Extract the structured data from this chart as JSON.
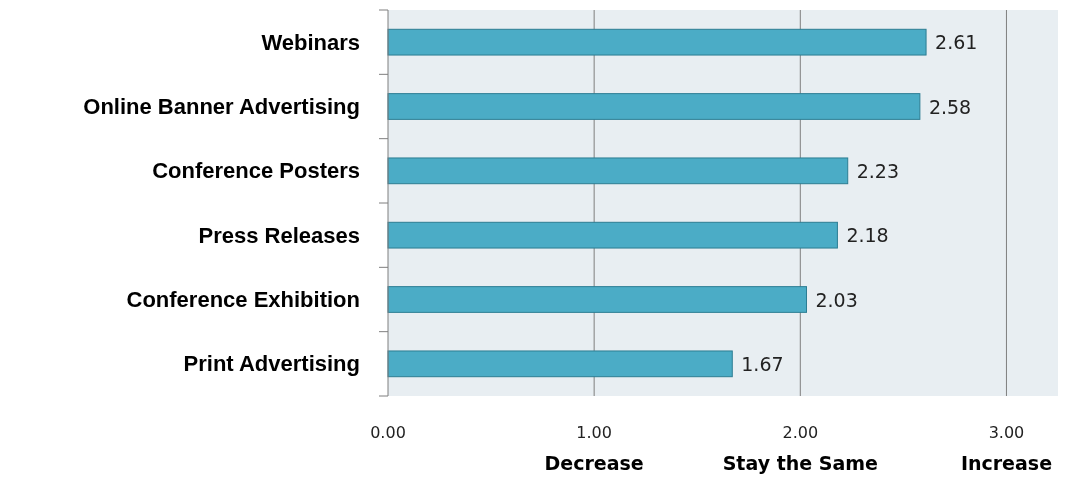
{
  "chart_data": {
    "type": "bar",
    "orientation": "horizontal",
    "categories": [
      "Webinars",
      "Online Banner Advertising",
      "Conference Posters",
      "Press Releases",
      "Conference Exhibition",
      "Print Advertising"
    ],
    "values": [
      2.61,
      2.58,
      2.23,
      2.18,
      2.03,
      1.67
    ],
    "color": "#4bacc6",
    "xlim": [
      0,
      3.25
    ],
    "xticks": [
      {
        "value": 0,
        "label": "0.00"
      },
      {
        "value": 1,
        "label": "1.00"
      },
      {
        "value": 2,
        "label": "2.00"
      },
      {
        "value": 3,
        "label": "3.00"
      }
    ],
    "grid": "x",
    "data_labels": true,
    "annotations": [
      "Decrease",
      "Stay the Same",
      "Increase"
    ]
  }
}
